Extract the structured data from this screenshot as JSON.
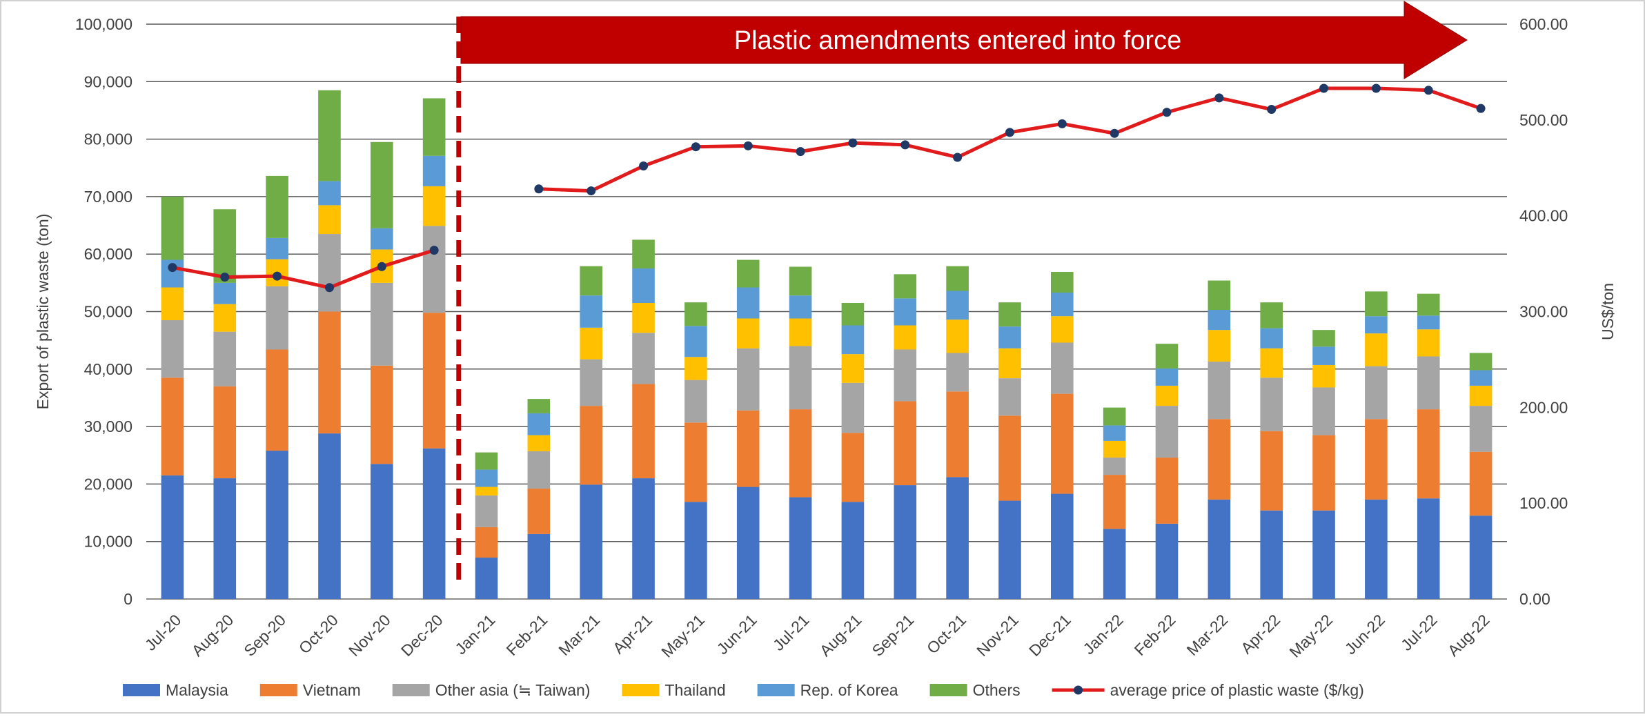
{
  "chart_data": {
    "type": "bar",
    "stacked": true,
    "categories": [
      "Jul-20",
      "Aug-20",
      "Sep-20",
      "Oct-20",
      "Nov-20",
      "Dec-20",
      "Jan-21",
      "Feb-21",
      "Mar-21",
      "Apr-21",
      "May-21",
      "Jun-21",
      "Jul-21",
      "Aug-21",
      "Sep-21",
      "Oct-21",
      "Nov-21",
      "Dec-21",
      "Jan-22",
      "Feb-22",
      "Mar-22",
      "Apr-22",
      "May-22",
      "Jun-22",
      "Jul-22",
      "Aug-22"
    ],
    "ylabel": "Export of plastic waste (ton)",
    "ylim": [
      0,
      100000
    ],
    "yticks": [
      "0",
      "10,000",
      "20,000",
      "30,000",
      "40,000",
      "50,000",
      "60,000",
      "70,000",
      "80,000",
      "90,000",
      "100,000"
    ],
    "y2label": "US$/ton",
    "y2lim": [
      0,
      600
    ],
    "y2ticks": [
      "0.00",
      "100.00",
      "200.00",
      "300.00",
      "400.00",
      "500.00",
      "600.00"
    ],
    "grid": true,
    "legend_position": "bottom",
    "series": [
      {
        "name": "Malaysia",
        "color": "#4472C4",
        "values": [
          21500,
          21000,
          25800,
          28800,
          23500,
          26200,
          7200,
          11300,
          19900,
          21000,
          16900,
          19500,
          17700,
          16900,
          19800,
          21200,
          17100,
          18300,
          12200,
          13100,
          17300,
          15400,
          15400,
          17300,
          17500,
          14500
        ]
      },
      {
        "name": "Vietnam",
        "color": "#ED7D31",
        "values": [
          17000,
          16000,
          17600,
          21200,
          17100,
          23600,
          5300,
          7900,
          13700,
          16400,
          13800,
          13300,
          15300,
          12000,
          14600,
          14900,
          14800,
          17400,
          9400,
          11500,
          14000,
          13800,
          13100,
          14000,
          15500,
          11100
        ]
      },
      {
        "name": "Other asia (≒ Taiwan)",
        "color": "#A5A5A5",
        "values": [
          10000,
          9500,
          11000,
          13500,
          14400,
          15100,
          5500,
          6500,
          8100,
          8900,
          7400,
          10800,
          11000,
          8700,
          9000,
          6700,
          6500,
          8900,
          3000,
          9000,
          10000,
          9300,
          8300,
          9200,
          9200,
          8000
        ]
      },
      {
        "name": "Thailand",
        "color": "#FFC000",
        "values": [
          5700,
          4800,
          4700,
          5000,
          5800,
          6900,
          1500,
          2800,
          5500,
          5200,
          4000,
          5200,
          4800,
          5000,
          4200,
          5800,
          5200,
          4600,
          2900,
          3500,
          5500,
          5100,
          3900,
          5700,
          4700,
          3500
        ]
      },
      {
        "name": "Rep. of Korea",
        "color": "#5B9BD5",
        "values": [
          4800,
          3700,
          3700,
          4200,
          3700,
          5300,
          3000,
          3800,
          5600,
          6000,
          5400,
          5400,
          4000,
          5000,
          4700,
          5000,
          3800,
          4100,
          2700,
          3000,
          3500,
          3500,
          3200,
          3000,
          2400,
          2700
        ]
      },
      {
        "name": "Others",
        "color": "#70AD47",
        "values": [
          11000,
          12800,
          10800,
          15800,
          15000,
          10000,
          3000,
          2500,
          5100,
          5000,
          4100,
          4800,
          5000,
          3900,
          4200,
          4300,
          4200,
          3600,
          3100,
          4300,
          5100,
          4500,
          2900,
          4300,
          3800,
          3000
        ]
      }
    ],
    "line_series": {
      "name": "average price of plastic waste ($/kg)",
      "color": "#E11B1B",
      "axis": "right",
      "values": [
        346,
        336,
        337,
        325,
        347,
        364,
        null,
        428,
        426,
        452,
        472,
        473,
        467,
        476,
        474,
        461,
        487,
        496,
        486,
        508,
        523,
        511,
        533,
        533,
        531,
        512
      ]
    },
    "annotations": [
      {
        "type": "vertical-dashed-line",
        "between": [
          "Dec-20",
          "Jan-21"
        ],
        "color": "#C00000"
      },
      {
        "type": "arrow-banner",
        "text": "Plastic amendments entered into force",
        "from": "Jan-21",
        "color": "#C00000"
      }
    ]
  }
}
